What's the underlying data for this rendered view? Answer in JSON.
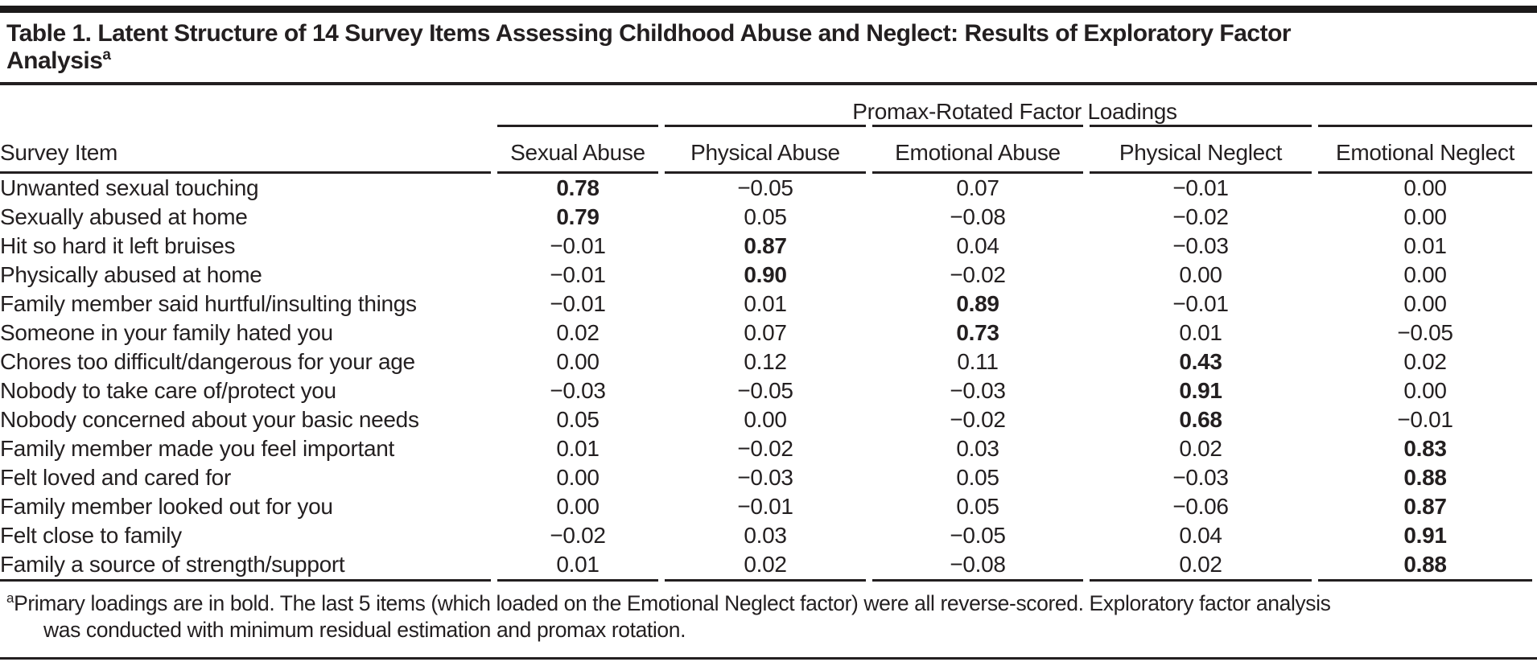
{
  "title": {
    "lines": [
      "Table 1. Latent Structure of 14 Survey Items Assessing Childhood Abuse and Neglect: Results of Exploratory Factor",
      "Analysis"
    ],
    "superscript": "a"
  },
  "table": {
    "spanning_header": "Promax-Rotated Factor Loadings",
    "row_header": "Survey Item",
    "factor_columns": [
      "Sexual Abuse",
      "Physical Abuse",
      "Emotional Abuse",
      "Physical Neglect",
      "Emotional Neglect"
    ],
    "rows": [
      {
        "item": "Unwanted sexual touching",
        "loadings": [
          "0.78",
          "−0.05",
          "0.07",
          "−0.01",
          "0.00"
        ],
        "primary_index": 0
      },
      {
        "item": "Sexually abused at home",
        "loadings": [
          "0.79",
          "0.05",
          "−0.08",
          "−0.02",
          "0.00"
        ],
        "primary_index": 0
      },
      {
        "item": "Hit so hard it left bruises",
        "loadings": [
          "−0.01",
          "0.87",
          "0.04",
          "−0.03",
          "0.01"
        ],
        "primary_index": 1
      },
      {
        "item": "Physically abused at home",
        "loadings": [
          "−0.01",
          "0.90",
          "−0.02",
          "0.00",
          "0.00"
        ],
        "primary_index": 1
      },
      {
        "item": "Family member said hurtful/insulting things",
        "loadings": [
          "−0.01",
          "0.01",
          "0.89",
          "−0.01",
          "0.00"
        ],
        "primary_index": 2
      },
      {
        "item": "Someone in your family hated you",
        "loadings": [
          "0.02",
          "0.07",
          "0.73",
          "0.01",
          "−0.05"
        ],
        "primary_index": 2
      },
      {
        "item": "Chores too difficult/dangerous for your age",
        "loadings": [
          "0.00",
          "0.12",
          "0.11",
          "0.43",
          "0.02"
        ],
        "primary_index": 3
      },
      {
        "item": "Nobody to take care of/protect you",
        "loadings": [
          "−0.03",
          "−0.05",
          "−0.03",
          "0.91",
          "0.00"
        ],
        "primary_index": 3
      },
      {
        "item": "Nobody concerned about your basic needs",
        "loadings": [
          "0.05",
          "0.00",
          "−0.02",
          "0.68",
          "−0.01"
        ],
        "primary_index": 3
      },
      {
        "item": "Family member made you feel important",
        "loadings": [
          "0.01",
          "−0.02",
          "0.03",
          "0.02",
          "0.83"
        ],
        "primary_index": 4
      },
      {
        "item": "Felt loved and cared for",
        "loadings": [
          "0.00",
          "−0.03",
          "0.05",
          "−0.03",
          "0.88"
        ],
        "primary_index": 4
      },
      {
        "item": "Family member looked out for you",
        "loadings": [
          "0.00",
          "−0.01",
          "0.05",
          "−0.06",
          "0.87"
        ],
        "primary_index": 4
      },
      {
        "item": "Felt close to family",
        "loadings": [
          "−0.02",
          "0.03",
          "−0.05",
          "0.04",
          "0.91"
        ],
        "primary_index": 4
      },
      {
        "item": "Family a source of strength/support",
        "loadings": [
          "0.01",
          "0.02",
          "−0.08",
          "0.02",
          "0.88"
        ],
        "primary_index": 4
      }
    ]
  },
  "footnote": {
    "marker": "a",
    "lines": [
      "Primary loadings are in bold. The last 5 items (which loaded on the Emotional Neglect factor) were all reverse-scored. Exploratory factor analysis",
      "was conducted with minimum residual estimation and promax rotation."
    ]
  },
  "colors": {
    "text": "#231f20",
    "rule": "#231f20",
    "background": "#ffffff"
  }
}
